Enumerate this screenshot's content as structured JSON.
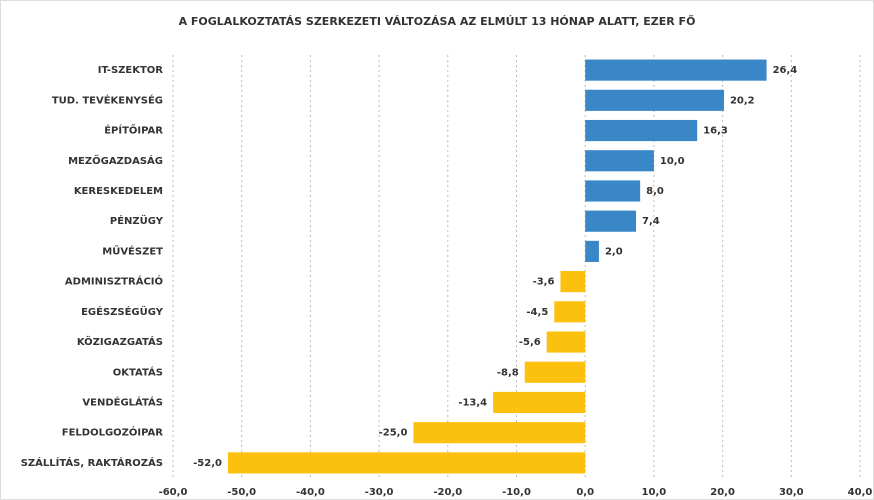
{
  "chart_data": {
    "type": "hbar",
    "title": "A FOGLALKOZTATÁS SZERKEZETI VÁLTOZÁSA AZ ELMÚLT 13 HÓNAP ALATT, EZER FŐ",
    "categories": [
      "IT-SZEKTOR",
      "TUD. TEVÉKENYSÉG",
      "ÉPÍTŐIPAR",
      "MEZŐGAZDASÁG",
      "KERESKEDELEM",
      "PÉNZÜGY",
      "MŰVÉSZET",
      "ADMINISZTRÁCIÓ",
      "EGÉSZSÉGÜGY",
      "KÖZIGAZGATÁS",
      "OKTATÁS",
      "VENDÉGLÁTÁS",
      "FELDOLGOZÓIPAR",
      "SZÁLLÍTÁS, RAKTÁROZÁS"
    ],
    "values": [
      26.4,
      20.2,
      16.3,
      10.0,
      8.0,
      7.4,
      2.0,
      -3.6,
      -4.5,
      -5.6,
      -8.8,
      -13.4,
      -25.0,
      -52.0
    ],
    "value_labels": [
      "26,4",
      "20,2",
      "16,3",
      "10,0",
      "8,0",
      "7,4",
      "2,0",
      "-3,6",
      "-4,5",
      "-5,6",
      "-8,8",
      "-13,4",
      "-25,0",
      "-52,0"
    ],
    "positive_color": "#3a87c8",
    "negative_color": "#fbc10e",
    "xlim": [
      -60,
      40
    ],
    "xticks": [
      {
        "value": -60,
        "label": "-60,0"
      },
      {
        "value": -50,
        "label": "-50,0"
      },
      {
        "value": -40,
        "label": "-40,0"
      },
      {
        "value": -30,
        "label": "-30,0"
      },
      {
        "value": -20,
        "label": "-20,0"
      },
      {
        "value": -10,
        "label": "-10,0"
      },
      {
        "value": 0,
        "label": "0,0"
      },
      {
        "value": 10,
        "label": "10,0"
      },
      {
        "value": 20,
        "label": "20,0"
      },
      {
        "value": 30,
        "label": "30,0"
      },
      {
        "value": 40,
        "label": "40,0"
      }
    ],
    "grid": true
  }
}
